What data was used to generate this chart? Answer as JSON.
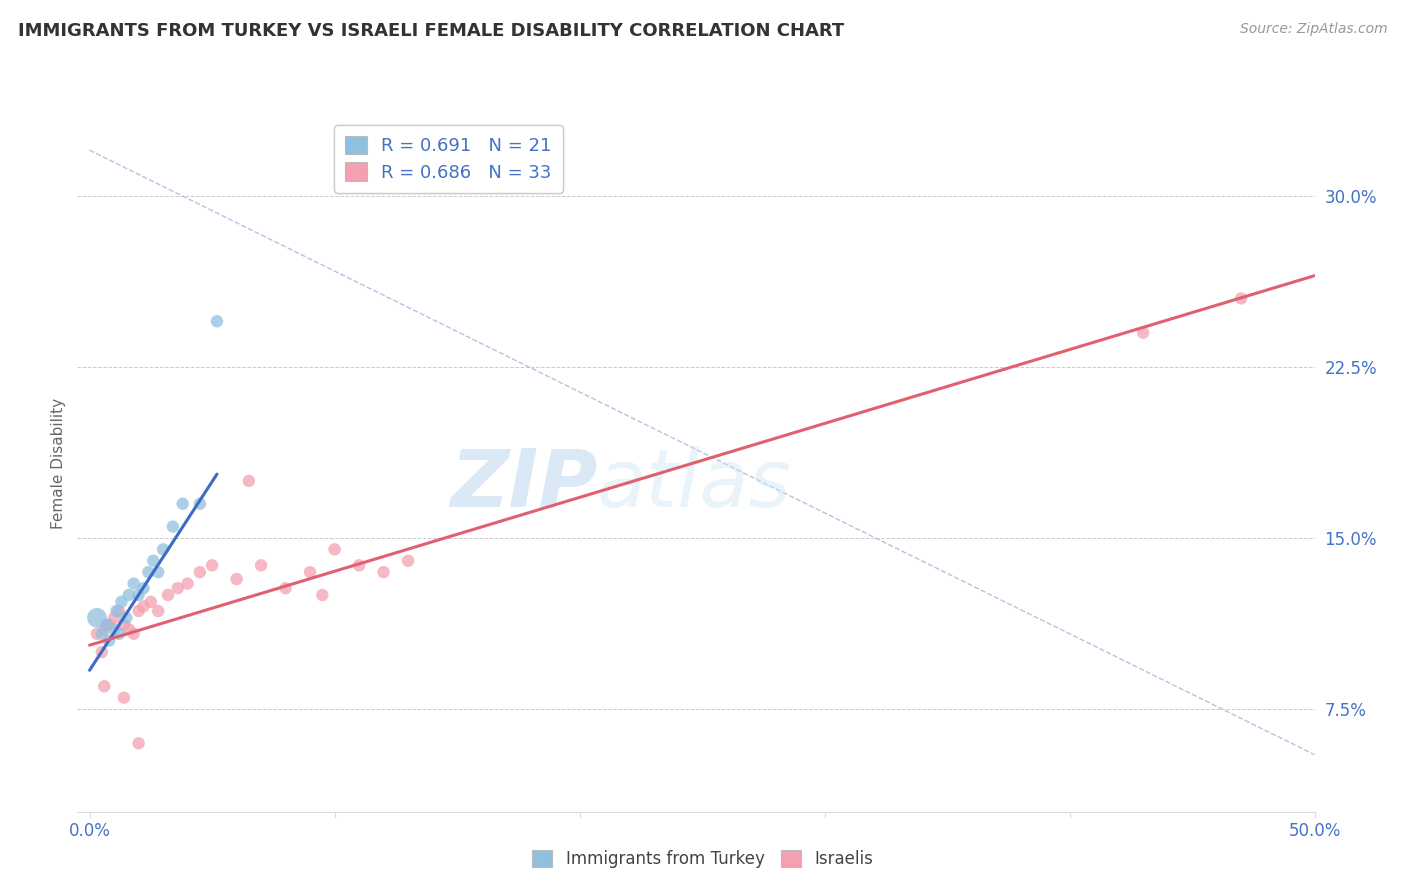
{
  "title": "IMMIGRANTS FROM TURKEY VS ISRAELI FEMALE DISABILITY CORRELATION CHART",
  "source": "Source: ZipAtlas.com",
  "ylabel": "Female Disability",
  "legend_label1": "Immigrants from Turkey",
  "legend_label2": "Israelis",
  "r1": 0.691,
  "n1": 21,
  "r2": 0.686,
  "n2": 33,
  "color_blue": "#90BFE0",
  "color_pink": "#F4A0B0",
  "color_blue_line": "#3B6BC4",
  "color_pink_line": "#E06070",
  "color_dashed": "#AABFDD",
  "xlim": [
    -0.005,
    0.5
  ],
  "ylim": [
    0.03,
    0.335
  ],
  "ytick_positions": [
    0.075,
    0.15,
    0.225,
    0.3
  ],
  "ytick_labels": [
    "7.5%",
    "15.0%",
    "22.5%",
    "30.0%"
  ],
  "watermark_zip": "ZIP",
  "watermark_atlas": "atlas",
  "blue_dots_x": [
    0.003,
    0.005,
    0.007,
    0.008,
    0.01,
    0.011,
    0.012,
    0.013,
    0.015,
    0.016,
    0.018,
    0.02,
    0.022,
    0.024,
    0.026,
    0.028,
    0.03,
    0.034,
    0.038,
    0.045,
    0.052
  ],
  "blue_dots_y": [
    0.115,
    0.108,
    0.112,
    0.105,
    0.11,
    0.118,
    0.108,
    0.122,
    0.115,
    0.125,
    0.13,
    0.125,
    0.128,
    0.135,
    0.14,
    0.135,
    0.145,
    0.155,
    0.165,
    0.165,
    0.245
  ],
  "blue_dot_sizes": [
    200,
    80,
    80,
    80,
    80,
    80,
    80,
    80,
    80,
    80,
    80,
    80,
    80,
    80,
    80,
    80,
    80,
    80,
    80,
    80,
    80
  ],
  "pink_dots_x": [
    0.003,
    0.005,
    0.006,
    0.008,
    0.01,
    0.012,
    0.014,
    0.016,
    0.018,
    0.02,
    0.022,
    0.025,
    0.028,
    0.032,
    0.036,
    0.04,
    0.045,
    0.05,
    0.06,
    0.07,
    0.08,
    0.09,
    0.1,
    0.11,
    0.12,
    0.13,
    0.006,
    0.014,
    0.02,
    0.43,
    0.47,
    0.065,
    0.095
  ],
  "pink_dots_y": [
    0.108,
    0.1,
    0.11,
    0.112,
    0.115,
    0.118,
    0.112,
    0.11,
    0.108,
    0.118,
    0.12,
    0.122,
    0.118,
    0.125,
    0.128,
    0.13,
    0.135,
    0.138,
    0.132,
    0.138,
    0.128,
    0.135,
    0.145,
    0.138,
    0.135,
    0.14,
    0.085,
    0.08,
    0.06,
    0.24,
    0.255,
    0.175,
    0.125
  ],
  "pink_dot_sizes": [
    80,
    80,
    80,
    80,
    80,
    80,
    80,
    80,
    80,
    80,
    80,
    80,
    80,
    80,
    80,
    80,
    80,
    80,
    80,
    80,
    80,
    80,
    80,
    80,
    80,
    80,
    80,
    80,
    80,
    80,
    80,
    80,
    80
  ],
  "blue_line_x": [
    0.0,
    0.052
  ],
  "blue_line_y": [
    0.092,
    0.178
  ],
  "pink_line_x": [
    0.0,
    0.5
  ],
  "pink_line_y": [
    0.103,
    0.265
  ],
  "dash_line_x": [
    0.0,
    0.5
  ],
  "dash_line_y": [
    0.32,
    0.055
  ]
}
